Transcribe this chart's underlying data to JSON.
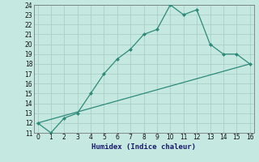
{
  "xlabel": "Humidex (Indice chaleur)",
  "line1_x": [
    0,
    1,
    2,
    3,
    4,
    5,
    6,
    7,
    8,
    9,
    10,
    11,
    12,
    13,
    14,
    15,
    16
  ],
  "line1_y": [
    12,
    11,
    12.5,
    13,
    15,
    17,
    18.5,
    19.5,
    21,
    21.5,
    24,
    23,
    23.5,
    20,
    19,
    19,
    18
  ],
  "line2_x": [
    0,
    16
  ],
  "line2_y": [
    12,
    18
  ],
  "line_color": "#2e8b7a",
  "bg_color": "#c5e8e0",
  "grid_color_major": "#aacfca",
  "grid_color_minor": "#b8dcd6",
  "ylim": [
    11,
    24
  ],
  "xlim": [
    -0.3,
    16.3
  ],
  "yticks": [
    11,
    12,
    13,
    14,
    15,
    16,
    17,
    18,
    19,
    20,
    21,
    22,
    23,
    24
  ],
  "xticks": [
    0,
    1,
    2,
    3,
    4,
    5,
    6,
    7,
    8,
    9,
    10,
    11,
    12,
    13,
    14,
    15,
    16
  ],
  "tick_fontsize": 5.5,
  "xlabel_fontsize": 6.5
}
